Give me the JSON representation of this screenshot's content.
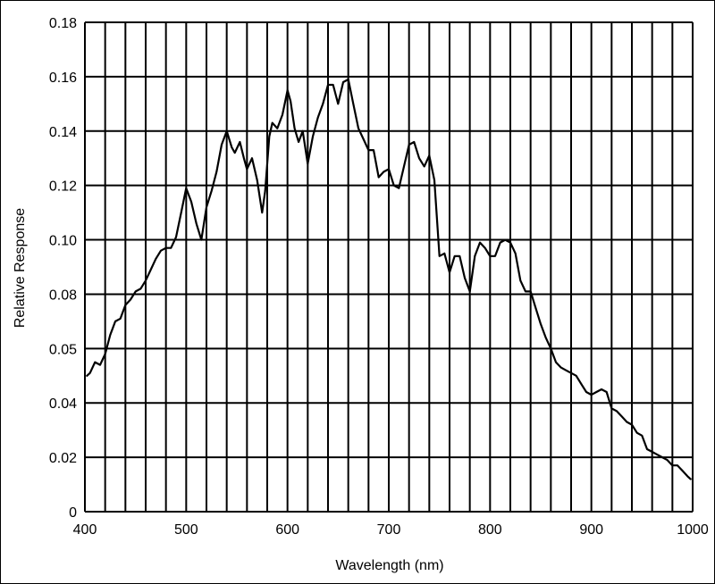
{
  "chart_data": {
    "type": "line",
    "title": "",
    "xlabel": "Wavelength (nm)",
    "ylabel": "Relative Response",
    "xlim": [
      400,
      1000
    ],
    "ylim": [
      0,
      0.18
    ],
    "grid": true,
    "legend": "none",
    "x_ticks": [
      "400",
      "500",
      "600",
      "700",
      "800",
      "900",
      "1000"
    ],
    "y_ticks": [
      "0",
      "0.02",
      "0.04",
      "0.05",
      "0.08",
      "0.10",
      "0.12",
      "0.14",
      "0.16",
      "0.18"
    ],
    "series": [
      {
        "color": "#000000",
        "x": [
          402,
          405,
          410,
          415,
          420,
          425,
          430,
          435,
          440,
          445,
          450,
          455,
          460,
          465,
          470,
          475,
          480,
          485,
          490,
          495,
          500,
          505,
          510,
          515,
          520,
          525,
          530,
          535,
          540,
          545,
          548,
          553,
          557,
          560,
          565,
          570,
          575,
          578,
          582,
          585,
          590,
          595,
          600,
          603,
          607,
          611,
          615,
          620,
          625,
          630,
          635,
          640,
          645,
          650,
          655,
          660,
          665,
          670,
          675,
          680,
          685,
          690,
          695,
          700,
          705,
          710,
          715,
          720,
          725,
          730,
          735,
          740,
          745,
          750,
          755,
          760,
          765,
          770,
          775,
          780,
          785,
          790,
          795,
          800,
          805,
          810,
          815,
          820,
          825,
          830,
          835,
          840,
          845,
          850,
          855,
          860,
          865,
          870,
          875,
          880,
          885,
          890,
          895,
          900,
          905,
          910,
          915,
          920,
          925,
          930,
          935,
          940,
          945,
          950,
          955,
          960,
          965,
          970,
          975,
          980,
          985,
          990,
          995,
          998
        ],
        "values": [
          0.05,
          0.051,
          0.055,
          0.054,
          0.058,
          0.065,
          0.07,
          0.071,
          0.076,
          0.078,
          0.081,
          0.082,
          0.085,
          0.089,
          0.093,
          0.096,
          0.097,
          0.097,
          0.101,
          0.11,
          0.119,
          0.114,
          0.106,
          0.1,
          0.112,
          0.118,
          0.125,
          0.135,
          0.14,
          0.134,
          0.132,
          0.136,
          0.13,
          0.126,
          0.13,
          0.122,
          0.11,
          0.118,
          0.138,
          0.143,
          0.141,
          0.146,
          0.155,
          0.151,
          0.141,
          0.136,
          0.14,
          0.128,
          0.138,
          0.145,
          0.15,
          0.157,
          0.157,
          0.15,
          0.158,
          0.159,
          0.15,
          0.141,
          0.137,
          0.133,
          0.133,
          0.123,
          0.125,
          0.126,
          0.12,
          0.119,
          0.127,
          0.135,
          0.136,
          0.13,
          0.127,
          0.131,
          0.122,
          0.094,
          0.095,
          0.088,
          0.094,
          0.094,
          0.086,
          0.081,
          0.094,
          0.099,
          0.097,
          0.094,
          0.094,
          0.099,
          0.1,
          0.099,
          0.095,
          0.085,
          0.081,
          0.081,
          0.075,
          0.069,
          0.064,
          0.06,
          0.055,
          0.053,
          0.052,
          0.051,
          0.05,
          0.047,
          0.044,
          0.043,
          0.044,
          0.045,
          0.044,
          0.038,
          0.037,
          0.035,
          0.033,
          0.032,
          0.029,
          0.028,
          0.023,
          0.022,
          0.021,
          0.02,
          0.019,
          0.017,
          0.017,
          0.015,
          0.013,
          0.012
        ]
      }
    ]
  }
}
